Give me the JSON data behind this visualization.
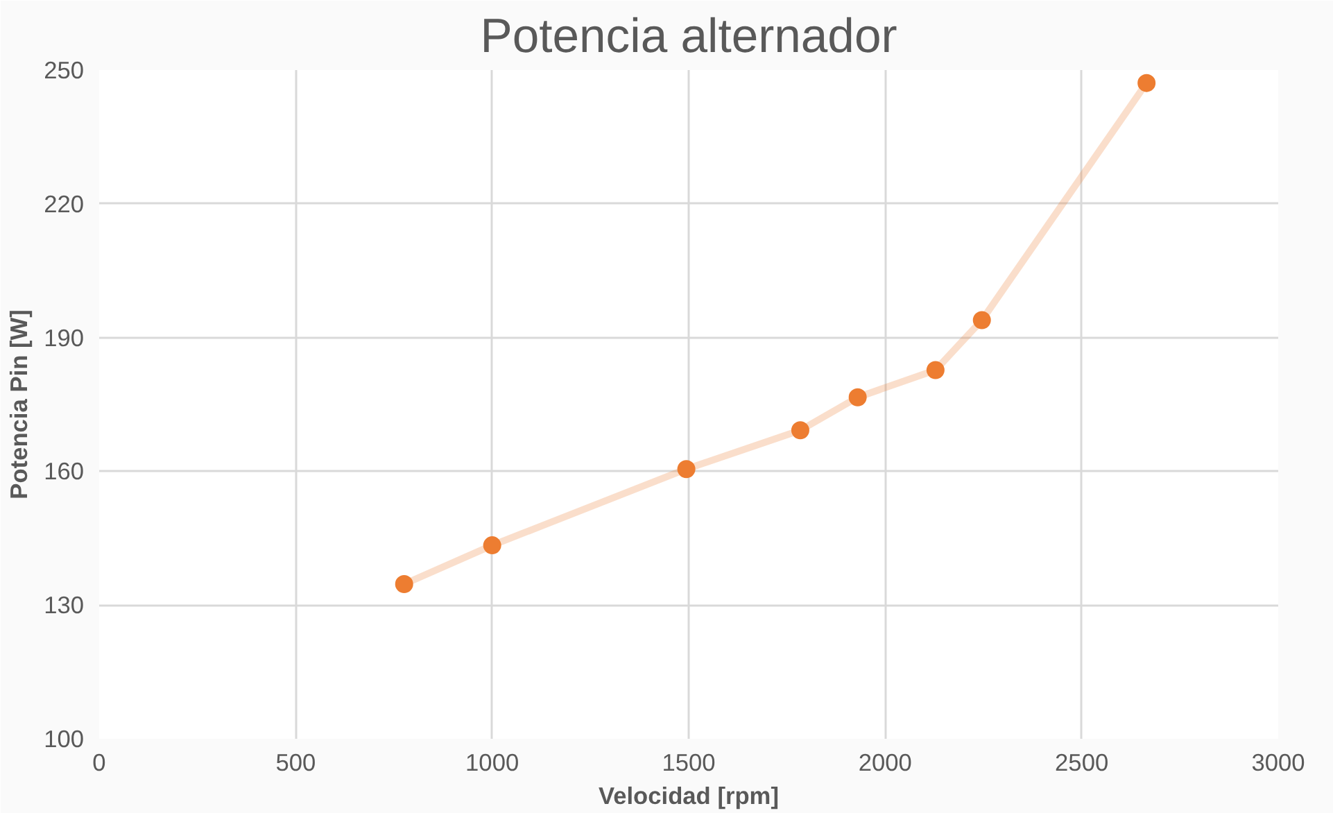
{
  "chart_data": {
    "type": "line",
    "title": "Potencia alternador",
    "xlabel": "Velocidad [rpm]",
    "ylabel": "Potencia Pin [W]",
    "xlim": [
      0,
      3000
    ],
    "xticks": [
      0,
      500,
      1000,
      1500,
      2000,
      2500,
      3000
    ],
    "ylim": [
      100,
      250
    ],
    "yticks": [
      100,
      130,
      160,
      190,
      220,
      250
    ],
    "grid": true,
    "marker": "circle",
    "line_style": "solid",
    "series": [
      {
        "color": "#ed7d31",
        "x": [
          776,
          1000,
          1494,
          1784,
          1930,
          2128,
          2246,
          2665
        ],
        "values": [
          134.7,
          143.4,
          160.5,
          169.2,
          176.6,
          182.7,
          193.9,
          247.1
        ]
      }
    ]
  }
}
